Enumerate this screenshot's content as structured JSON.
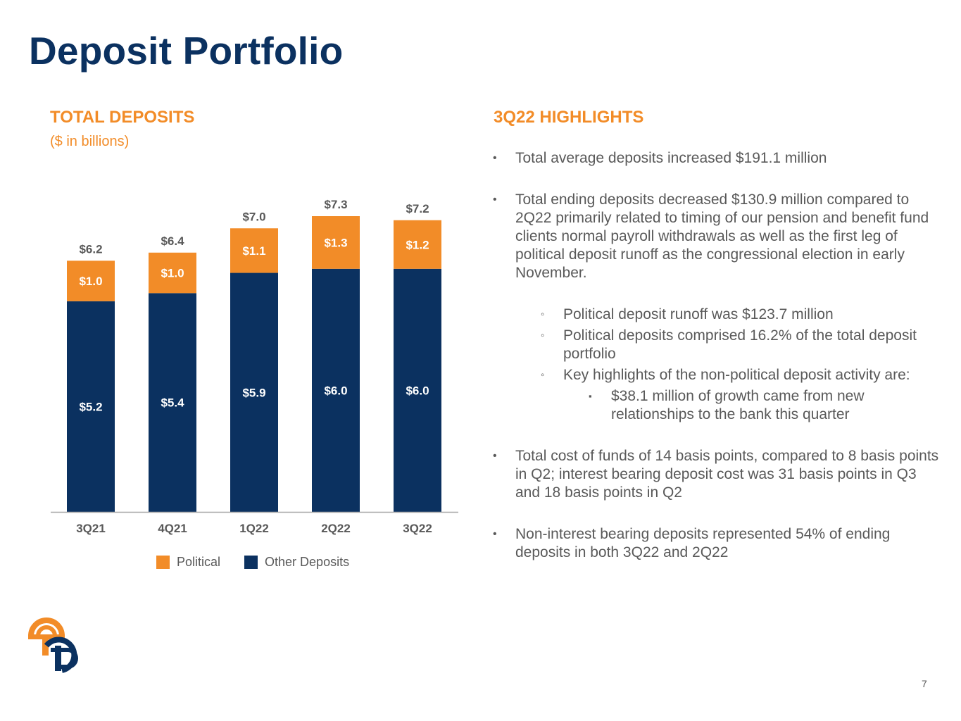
{
  "title": "Deposit Portfolio",
  "left_heading": "TOTAL DEPOSITS",
  "units": "($ in billions)",
  "right_heading": "3Q22 HIGHLIGHTS",
  "highlights": {
    "b1": "Total average deposits increased $191.1 million",
    "b2": "Total ending deposits decreased $130.9 million compared to 2Q22 primarily related to timing of our pension and benefit fund clients normal payroll withdrawals as well as the first leg of political deposit runoff as the congressional election in early November.",
    "s1": "Political deposit runoff was $123.7 million",
    "s2": "Political deposits comprised 16.2% of the total deposit portfolio",
    "s3": "Key highlights of the non-political deposit activity are:",
    "ss1": "$38.1 million of growth came from new relationships to the bank this quarter",
    "b3": "Total cost of funds of 14 basis points, compared to 8 basis points in Q2; interest bearing deposit cost was 31 basis points in Q3 and 18 basis points in Q2",
    "b4": "Non-interest bearing deposits represented 54% of ending deposits in both 3Q22 and  2Q22"
  },
  "page_number": "7",
  "colors": {
    "navy": "#0b3160",
    "orange": "#f28c28",
    "gray_text": "#595959"
  },
  "chart_data": {
    "type": "bar",
    "stacked": true,
    "categories": [
      "3Q21",
      "4Q21",
      "1Q22",
      "2Q22",
      "3Q22"
    ],
    "series": [
      {
        "name": "Other Deposits",
        "color": "#0b3160",
        "values": [
          5.2,
          5.4,
          5.9,
          6.0,
          6.0
        ],
        "labels": [
          "$5.2",
          "$5.4",
          "$5.9",
          "$6.0",
          "$6.0"
        ]
      },
      {
        "name": "Political",
        "color": "#f28c28",
        "values": [
          1.0,
          1.0,
          1.1,
          1.3,
          1.2
        ],
        "labels": [
          "$1.0",
          "$1.0",
          "$1.1",
          "$1.3",
          "$1.2"
        ]
      }
    ],
    "totals": [
      6.2,
      6.4,
      7.0,
      7.3,
      7.2
    ],
    "total_labels": [
      "$6.2",
      "$6.4",
      "$7.0",
      "$7.3",
      "$7.2"
    ],
    "ylim": [
      0,
      7.3
    ],
    "legend": [
      {
        "name": "Political",
        "color": "#f28c28"
      },
      {
        "name": "Other Deposits",
        "color": "#0b3160"
      }
    ],
    "legend_position": "bottom",
    "grid": false
  }
}
